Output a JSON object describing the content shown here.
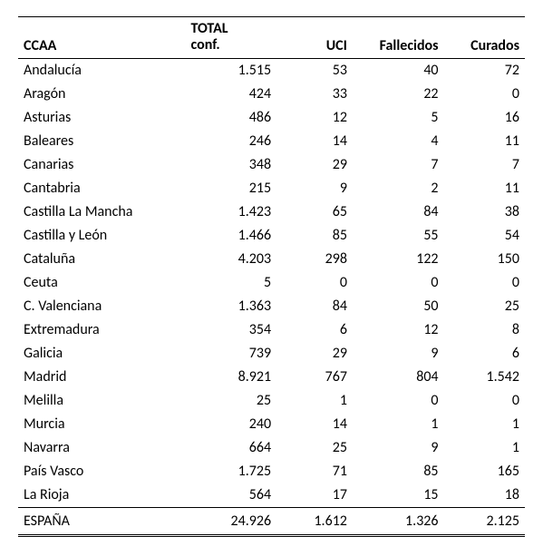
{
  "table": {
    "type": "table",
    "background_color": "#ffffff",
    "text_color": "#000000",
    "border_color": "#000000",
    "font_family": "Calibri, Arial, sans-serif",
    "header_fontsize": 16,
    "body_fontsize": 16,
    "columns": [
      {
        "key": "ccaa",
        "label": "CCAA",
        "align": "left",
        "width_pct": 33
      },
      {
        "key": "total",
        "label_line1": "TOTAL",
        "label_line2": "conf.",
        "align": "right",
        "width_pct": 18
      },
      {
        "key": "uci",
        "label": "UCI",
        "align": "right",
        "width_pct": 15
      },
      {
        "key": "fallecidos",
        "label": "Fallecidos",
        "align": "right",
        "width_pct": 18
      },
      {
        "key": "curados",
        "label": "Curados",
        "align": "right",
        "width_pct": 16
      }
    ],
    "rows": [
      {
        "ccaa": "Andalucía",
        "total": "1.515",
        "uci": "53",
        "fallecidos": "40",
        "curados": "72"
      },
      {
        "ccaa": "Aragón",
        "total": "424",
        "uci": "33",
        "fallecidos": "22",
        "curados": "0"
      },
      {
        "ccaa": "Asturias",
        "total": "486",
        "uci": "12",
        "fallecidos": "5",
        "curados": "16"
      },
      {
        "ccaa": "Baleares",
        "total": "246",
        "uci": "14",
        "fallecidos": "4",
        "curados": "11"
      },
      {
        "ccaa": "Canarias",
        "total": "348",
        "uci": "29",
        "fallecidos": "7",
        "curados": "7"
      },
      {
        "ccaa": "Cantabria",
        "total": "215",
        "uci": "9",
        "fallecidos": "2",
        "curados": "11"
      },
      {
        "ccaa": "Castilla La Mancha",
        "total": "1.423",
        "uci": "65",
        "fallecidos": "84",
        "curados": "38"
      },
      {
        "ccaa": "Castilla y León",
        "total": "1.466",
        "uci": "85",
        "fallecidos": "55",
        "curados": "54"
      },
      {
        "ccaa": "Cataluña",
        "total": "4.203",
        "uci": "298",
        "fallecidos": "122",
        "curados": "150"
      },
      {
        "ccaa": "Ceuta",
        "total": "5",
        "uci": "0",
        "fallecidos": "0",
        "curados": "0"
      },
      {
        "ccaa": "C. Valenciana",
        "total": "1.363",
        "uci": "84",
        "fallecidos": "50",
        "curados": "25"
      },
      {
        "ccaa": "Extremadura",
        "total": "354",
        "uci": "6",
        "fallecidos": "12",
        "curados": "8"
      },
      {
        "ccaa": "Galicia",
        "total": "739",
        "uci": "29",
        "fallecidos": "9",
        "curados": "6"
      },
      {
        "ccaa": "Madrid",
        "total": "8.921",
        "uci": "767",
        "fallecidos": "804",
        "curados": "1.542"
      },
      {
        "ccaa": "Melilla",
        "total": "25",
        "uci": "1",
        "fallecidos": "0",
        "curados": "0"
      },
      {
        "ccaa": "Murcia",
        "total": "240",
        "uci": "14",
        "fallecidos": "1",
        "curados": "1"
      },
      {
        "ccaa": "Navarra",
        "total": "664",
        "uci": "25",
        "fallecidos": "9",
        "curados": "1"
      },
      {
        "ccaa": "País Vasco",
        "total": "1.725",
        "uci": "71",
        "fallecidos": "85",
        "curados": "165"
      },
      {
        "ccaa": "La Rioja",
        "total": "564",
        "uci": "17",
        "fallecidos": "15",
        "curados": "18"
      }
    ],
    "total_row": {
      "ccaa": "ESPAÑA",
      "total": "24.926",
      "uci": "1.612",
      "fallecidos": "1.326",
      "curados": "2.125"
    }
  }
}
